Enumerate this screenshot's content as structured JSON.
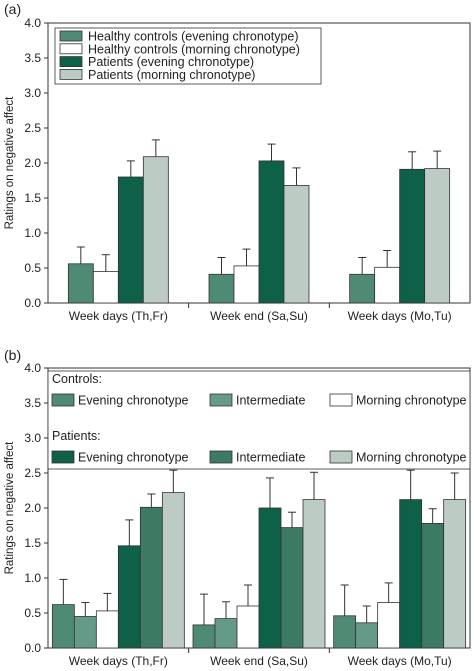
{
  "chart_data": [
    {
      "panel_label": "(a)",
      "type": "bar",
      "ylabel": "Ratings on negative affect",
      "ylim": [
        0,
        4.0
      ],
      "yticks": [
        0,
        0.5,
        1.0,
        1.5,
        2.0,
        2.5,
        3.0,
        3.5,
        4.0
      ],
      "ytick_labels": [
        "0.0",
        "0.5",
        "1.0",
        "1.5",
        "2.0",
        "2.5",
        "3.0",
        "3.5",
        "4.0"
      ],
      "categories": [
        "Week days (Th,Fr)",
        "Week end (Sa,Su)",
        "Week days (Mo,Tu)"
      ],
      "legend_position": "top-left",
      "series": [
        {
          "name": "Healthy controls (evening chronotype)",
          "color": "#4f8a75",
          "values": [
            0.56,
            0.41,
            0.41
          ],
          "errors": [
            0.24,
            0.24,
            0.24
          ]
        },
        {
          "name": "Healthy controls (morning chronotype)",
          "color": "#ffffff",
          "values": [
            0.45,
            0.53,
            0.51
          ],
          "errors": [
            0.24,
            0.24,
            0.24
          ]
        },
        {
          "name": "Patients (evening chronotype)",
          "color": "#0e6048",
          "values": [
            1.8,
            2.03,
            1.91
          ],
          "errors": [
            0.23,
            0.24,
            0.25
          ]
        },
        {
          "name": "Patients (morning chronotype)",
          "color": "#bccbc3",
          "values": [
            2.09,
            1.68,
            1.92
          ],
          "errors": [
            0.24,
            0.25,
            0.25
          ]
        }
      ]
    },
    {
      "panel_label": "(b)",
      "type": "bar",
      "ylabel": "Ratings on negative affect",
      "ylim": [
        0,
        4.0
      ],
      "yticks": [
        0,
        0.5,
        1.0,
        1.5,
        2.0,
        2.5,
        3.0,
        3.5,
        4.0
      ],
      "ytick_labels": [
        "0.0",
        "0.5",
        "1.0",
        "1.5",
        "2.0",
        "2.5",
        "3.0",
        "3.5",
        "4.0"
      ],
      "categories": [
        "Week days (Th,Fr)",
        "Week end (Sa,Su)",
        "Week days (Mo,Tu)"
      ],
      "legend_position": "top",
      "legend_groups": [
        "Controls:",
        "Patients:"
      ],
      "series": [
        {
          "group": "Controls:",
          "name": "Evening chronotype",
          "color": "#4f8a75",
          "values": [
            0.62,
            0.33,
            0.46
          ],
          "errors": [
            0.36,
            0.44,
            0.44
          ]
        },
        {
          "group": "Controls:",
          "name": "Intermediate",
          "color": "#669a88",
          "values": [
            0.45,
            0.42,
            0.36
          ],
          "errors": [
            0.2,
            0.24,
            0.24
          ]
        },
        {
          "group": "Controls:",
          "name": "Morning chronotype",
          "color": "#ffffff",
          "values": [
            0.53,
            0.6,
            0.65
          ],
          "errors": [
            0.25,
            0.3,
            0.28
          ]
        },
        {
          "group": "Patients:",
          "name": "Evening chronotype",
          "color": "#0e6048",
          "values": [
            1.46,
            2.0,
            2.12
          ],
          "errors": [
            0.37,
            0.43,
            0.42
          ]
        },
        {
          "group": "Patients:",
          "name": "Intermediate",
          "color": "#3c7a64",
          "values": [
            2.01,
            1.72,
            1.78
          ],
          "errors": [
            0.19,
            0.22,
            0.21
          ]
        },
        {
          "group": "Patients:",
          "name": "Morning chronotype",
          "color": "#bccbc3",
          "values": [
            2.22,
            2.12,
            2.12
          ],
          "errors": [
            0.32,
            0.39,
            0.38
          ]
        }
      ]
    }
  ]
}
